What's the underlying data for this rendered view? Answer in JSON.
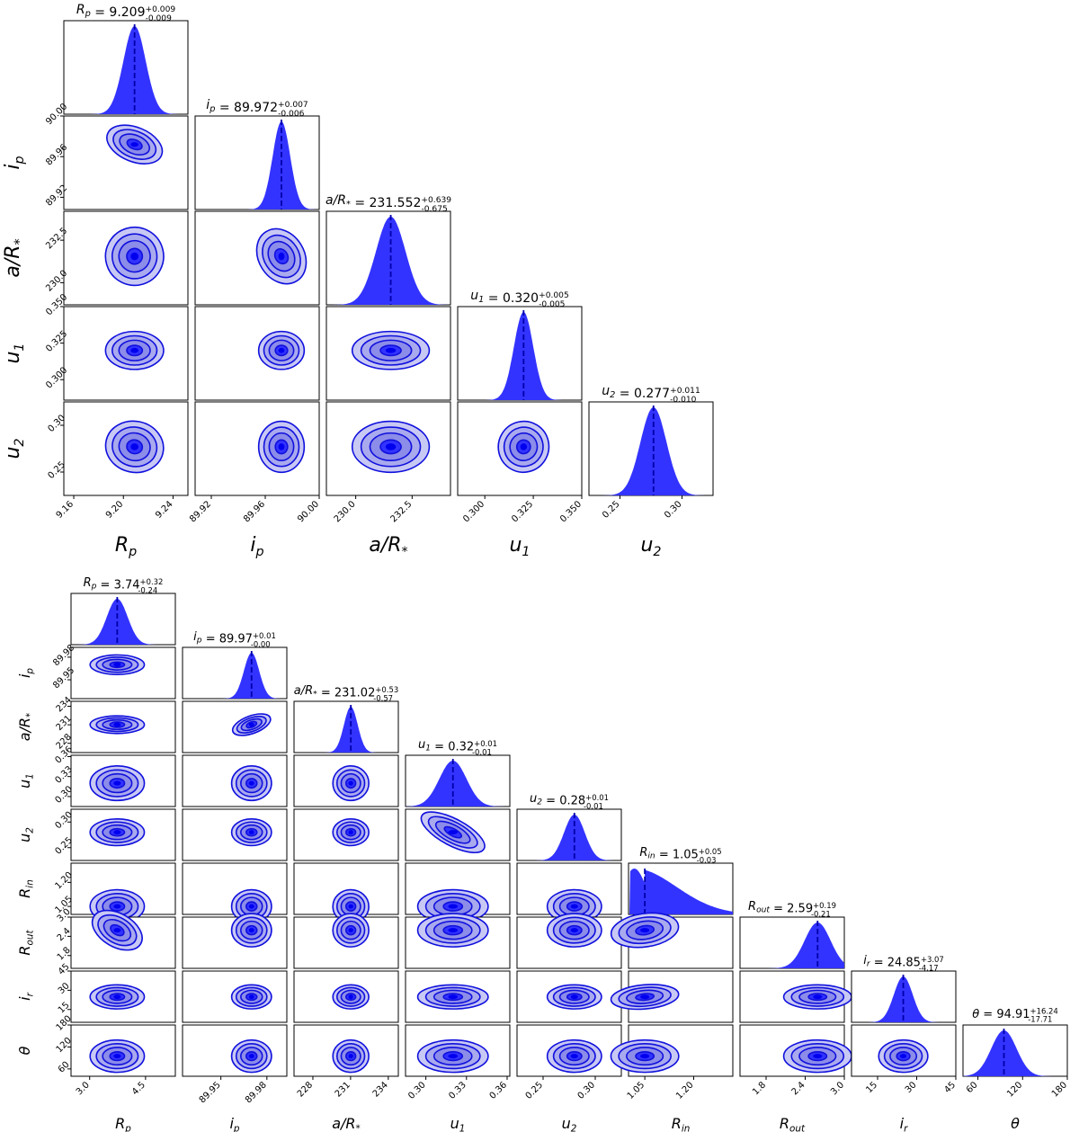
{
  "colors": {
    "posterior": "#3333ff",
    "contour_line": "#1010dd",
    "contour_fill": "#6a6ae8",
    "median_line": "#0000aa"
  },
  "chart_data": [
    {
      "type": "corner",
      "params": [
        {
          "label": "R_p",
          "title": "R_p = 9.209^{+0.009}_{-0.009}",
          "median": 9.209,
          "err_plus": 0.009,
          "err_minus": 0.009,
          "range": [
            9.152,
            9.252
          ],
          "ticks": [
            9.16,
            9.2,
            9.24
          ],
          "tick_labels": [
            "9.16",
            "9.20",
            "9.24"
          ]
        },
        {
          "label": "i_p",
          "title": "i_p = 89.972^{+0.007}_{-0.006}",
          "median": 89.972,
          "err_plus": 0.007,
          "err_minus": 0.006,
          "range": [
            89.908,
            90.0
          ],
          "ticks": [
            89.92,
            89.96,
            90.0
          ],
          "tick_labels": [
            "89.92",
            "89.96",
            "90.00"
          ]
        },
        {
          "label": "a/R_*",
          "title": "a/R_* = 231.552^{+0.639}_{-0.675}",
          "median": 231.552,
          "err_plus": 0.639,
          "err_minus": 0.675,
          "range": [
            228.7,
            234.2
          ],
          "ticks": [
            230.0,
            232.5
          ],
          "tick_labels": [
            "230.0",
            "232.5"
          ]
        },
        {
          "label": "u_1",
          "title": "u_1 = 0.320^{+0.005}_{-0.005}",
          "median": 0.32,
          "err_plus": 0.005,
          "err_minus": 0.005,
          "range": [
            0.286,
            0.35
          ],
          "ticks": [
            0.3,
            0.325,
            0.35
          ],
          "tick_labels": [
            "0.300",
            "0.325",
            "0.350"
          ]
        },
        {
          "label": "u_2",
          "title": "u_2 = 0.277^{+0.011}_{-0.010}",
          "median": 0.277,
          "err_plus": 0.011,
          "err_minus": 0.01,
          "range": [
            0.225,
            0.325
          ],
          "ticks": [
            0.25,
            0.3
          ],
          "tick_labels": [
            "0.25",
            "0.30"
          ]
        }
      ]
    },
    {
      "type": "corner",
      "params": [
        {
          "label": "R_p",
          "title": "R_p = 3.74^{+0.32}_{-0.24}",
          "median": 3.74,
          "err_plus": 0.32,
          "err_minus": 0.24,
          "range": [
            2.5,
            5.3
          ],
          "ticks": [
            3.0,
            4.5
          ],
          "tick_labels": [
            "3.0",
            "4.5"
          ],
          "skewed": false
        },
        {
          "label": "i_p",
          "title": "i_p = 89.97^{+0.01}_{-0.00}",
          "median": 89.97,
          "err_plus": 0.01,
          "err_minus": 0.0,
          "range": [
            89.925,
            89.993
          ],
          "ticks": [
            89.95,
            89.98
          ],
          "tick_labels": [
            "89.95",
            "89.98"
          ],
          "skewed": false
        },
        {
          "label": "a/R_*",
          "title": "a/R_* = 231.02^{+0.53}_{-0.57}",
          "median": 231.02,
          "err_plus": 0.53,
          "err_minus": 0.57,
          "range": [
            226.5,
            234.8
          ],
          "ticks": [
            228,
            231,
            234
          ],
          "tick_labels": [
            "228",
            "231",
            "234"
          ],
          "skewed": false
        },
        {
          "label": "u_1",
          "title": "u_1 = 0.32^{+0.01}_{-0.01}",
          "median": 0.32,
          "err_plus": 0.01,
          "err_minus": 0.01,
          "range": [
            0.285,
            0.362
          ],
          "ticks": [
            0.3,
            0.33,
            0.36
          ],
          "tick_labels": [
            "0.30",
            "0.33",
            "0.36"
          ],
          "skewed": false
        },
        {
          "label": "u_2",
          "title": "u_2 = 0.28^{+0.01}_{-0.01}",
          "median": 0.28,
          "err_plus": 0.01,
          "err_minus": 0.01,
          "range": [
            0.225,
            0.325
          ],
          "ticks": [
            0.25,
            0.3
          ],
          "tick_labels": [
            "0.25",
            "0.30"
          ],
          "skewed": false
        },
        {
          "label": "R_in",
          "title": "R_in = 1.05^{+0.05}_{-0.03}",
          "median": 1.05,
          "err_plus": 0.05,
          "err_minus": 0.03,
          "range": [
            1.0,
            1.32
          ],
          "ticks": [
            1.05,
            1.2
          ],
          "tick_labels": [
            "1.05",
            "1.20"
          ],
          "skewed": true
        },
        {
          "label": "R_out",
          "title": "R_out = 2.59^{+0.19}_{-0.21}",
          "median": 2.59,
          "err_plus": 0.19,
          "err_minus": 0.21,
          "range": [
            1.4,
            3.0
          ],
          "ticks": [
            1.8,
            2.4,
            3.0
          ],
          "tick_labels": [
            "1.8",
            "2.4",
            "3.0"
          ],
          "skewed": false
        },
        {
          "label": "i_r",
          "title": "i_r = 24.85^{+3.07}_{-4.17}",
          "median": 24.85,
          "err_plus": 3.07,
          "err_minus": 4.17,
          "range": [
            5,
            45
          ],
          "ticks": [
            15,
            30,
            45
          ],
          "tick_labels": [
            "15",
            "30",
            "45"
          ],
          "skewed": false
        },
        {
          "label": "θ",
          "title": "θ = 94.91^{+16.24}_{-17.71}",
          "median": 94.91,
          "err_plus": 16.24,
          "err_minus": 17.71,
          "range": [
            40,
            180
          ],
          "ticks": [
            60,
            120,
            180
          ],
          "tick_labels": [
            "60",
            "120",
            "180"
          ],
          "skewed": false
        }
      ]
    }
  ]
}
